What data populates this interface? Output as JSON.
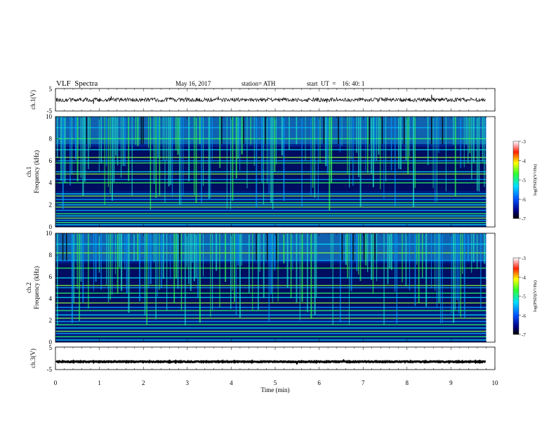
{
  "header": {
    "title": "VLF  Spectra",
    "date": "May 16, 2017",
    "station": "station= ATH",
    "start": "start  UT  =    16: 40: 1"
  },
  "chart_data": [
    {
      "type": "line",
      "panel": "ch1",
      "ylabel": "ch.1(V)",
      "yticks": [
        "5",
        "-5"
      ],
      "ylim": [
        -5,
        5
      ],
      "xlim": [
        0,
        10
      ],
      "data_extent_min": 9.8,
      "description_series": "noisy waveform centred near 0 V with small bursts",
      "level": 0.0,
      "amplitude": 0.9
    },
    {
      "type": "heatmap",
      "panel": "ch1-spectrogram",
      "ylabel": [
        "ch.1",
        "Frequency  (kHz)"
      ],
      "ylim": [
        0,
        10
      ],
      "yticks": [
        "10",
        "8",
        "6",
        "4",
        "2",
        "0"
      ],
      "xlim": [
        0,
        10
      ],
      "colorbar": {
        "label": "log(PSD)(V²/Hz)",
        "range": [
          -7,
          -3
        ],
        "ticks": [
          "-3",
          "-4",
          "-5",
          "-6",
          "-7"
        ]
      },
      "features": {
        "hum_lines_khz": [
          0.2,
          0.4,
          0.6,
          0.8,
          1.0,
          1.2,
          1.5,
          1.8,
          2.0,
          2.2,
          2.5,
          2.8,
          3.0,
          4.0,
          4.3,
          4.8,
          5.0,
          5.8,
          6.0,
          6.3,
          7.0,
          8.0,
          9.0
        ],
        "sferic_band_khz": [
          7.5,
          10
        ]
      }
    },
    {
      "type": "heatmap",
      "panel": "ch2-spectrogram",
      "ylabel": [
        "ch.2",
        "Frequency  (kHz)"
      ],
      "ylim": [
        0,
        10
      ],
      "yticks": [
        "10",
        "8",
        "6",
        "4",
        "2",
        "0"
      ],
      "xlim": [
        0,
        10
      ],
      "colorbar": {
        "label": "log(PSD)(V²/Hz)",
        "range": [
          -7,
          -3
        ],
        "ticks": [
          "-3",
          "-4",
          "-5",
          "-6",
          "-7"
        ]
      },
      "features": {
        "hum_lines_khz": [
          0.2,
          0.5,
          0.8,
          1.0,
          1.3,
          1.6,
          1.9,
          2.2,
          2.5,
          2.9,
          3.2,
          3.6,
          4.1,
          4.5,
          5.0,
          5.2,
          5.9,
          6.8,
          7.5,
          8.2,
          9.0
        ],
        "sferic_band_khz": [
          7.5,
          10
        ]
      }
    },
    {
      "type": "line",
      "panel": "ch3",
      "ylabel": "ch.3(V)",
      "yticks": [
        "5",
        "-5"
      ],
      "ylim": [
        -5,
        5
      ],
      "xlim": [
        0,
        10
      ],
      "data_extent_min": 9.8,
      "level": -1.5,
      "amplitude": 0.2
    }
  ],
  "xaxis": {
    "label": "Time  (min)",
    "ticks": [
      "0",
      "1",
      "2",
      "3",
      "4",
      "5",
      "6",
      "7",
      "8",
      "9",
      "10"
    ]
  }
}
